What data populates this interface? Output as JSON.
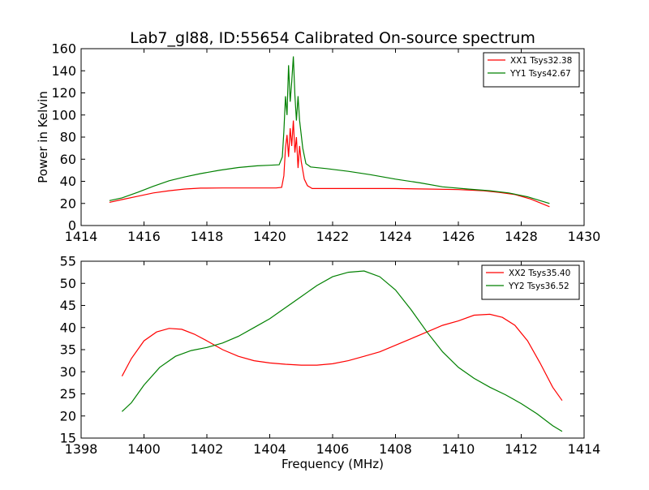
{
  "figure": {
    "title": "Lab7_gl88, ID:55654 Calibrated On-source spectrum"
  },
  "colors": {
    "red": "#ff0000",
    "green": "#008000",
    "axis": "#000000",
    "background": "#ffffff"
  },
  "chart_data": [
    {
      "type": "line",
      "title": "Lab7_gl88, ID:55654 Calibrated On-source spectrum",
      "xlabel": "",
      "ylabel": "Power in Kelvin",
      "xlim": [
        1414,
        1430
      ],
      "ylim": [
        0,
        160
      ],
      "xticks": [
        1414,
        1416,
        1418,
        1420,
        1422,
        1424,
        1426,
        1428,
        1430
      ],
      "yticks": [
        0,
        20,
        40,
        60,
        80,
        100,
        120,
        140,
        160
      ],
      "grid": false,
      "legend_position": "top-right",
      "series": [
        {
          "name": "XX1 Tsys32.38",
          "color": "#ff0000",
          "points": [
            [
              1414.9,
              21
            ],
            [
              1415.3,
              23.5
            ],
            [
              1415.8,
              26.5
            ],
            [
              1416.3,
              29.5
            ],
            [
              1416.8,
              31.5
            ],
            [
              1417.3,
              33
            ],
            [
              1417.8,
              33.8
            ],
            [
              1418.5,
              34
            ],
            [
              1419.5,
              34
            ],
            [
              1420.2,
              34
            ],
            [
              1420.38,
              34.5
            ],
            [
              1420.45,
              45
            ],
            [
              1420.5,
              70
            ],
            [
              1420.55,
              82
            ],
            [
              1420.6,
              62
            ],
            [
              1420.65,
              88
            ],
            [
              1420.7,
              72
            ],
            [
              1420.75,
              95
            ],
            [
              1420.8,
              66
            ],
            [
              1420.85,
              80
            ],
            [
              1420.9,
              52
            ],
            [
              1420.95,
              72
            ],
            [
              1421.0,
              58
            ],
            [
              1421.1,
              42
            ],
            [
              1421.2,
              36
            ],
            [
              1421.35,
              33.5
            ],
            [
              1422,
              33.5
            ],
            [
              1423,
              33.5
            ],
            [
              1424,
              33.5
            ],
            [
              1425,
              33
            ],
            [
              1426,
              32.5
            ],
            [
              1426.8,
              31.5
            ],
            [
              1427.3,
              30
            ],
            [
              1427.8,
              28
            ],
            [
              1428.3,
              24
            ],
            [
              1428.9,
              17
            ]
          ]
        },
        {
          "name": "YY1 Tsys42.67",
          "color": "#008000",
          "points": [
            [
              1414.9,
              22.5
            ],
            [
              1415.3,
              25
            ],
            [
              1415.8,
              30
            ],
            [
              1416.3,
              35.5
            ],
            [
              1416.8,
              40.5
            ],
            [
              1417.3,
              44
            ],
            [
              1417.8,
              47
            ],
            [
              1418.4,
              50
            ],
            [
              1419,
              52.5
            ],
            [
              1419.6,
              54
            ],
            [
              1420.0,
              54.5
            ],
            [
              1420.3,
              55
            ],
            [
              1420.4,
              62
            ],
            [
              1420.45,
              85
            ],
            [
              1420.5,
              117
            ],
            [
              1420.55,
              100
            ],
            [
              1420.6,
              145
            ],
            [
              1420.65,
              112
            ],
            [
              1420.7,
              130
            ],
            [
              1420.75,
              153
            ],
            [
              1420.8,
              118
            ],
            [
              1420.85,
              95
            ],
            [
              1420.9,
              117
            ],
            [
              1420.95,
              95
            ],
            [
              1421.05,
              70
            ],
            [
              1421.15,
              56
            ],
            [
              1421.3,
              53
            ],
            [
              1421.8,
              51.5
            ],
            [
              1422.5,
              49
            ],
            [
              1423.2,
              46
            ],
            [
              1424,
              42
            ],
            [
              1424.8,
              38.5
            ],
            [
              1425.5,
              35
            ],
            [
              1426.3,
              33
            ],
            [
              1427,
              31.5
            ],
            [
              1427.6,
              29.5
            ],
            [
              1428.2,
              26
            ],
            [
              1428.9,
              20
            ]
          ]
        }
      ]
    },
    {
      "type": "line",
      "title": "",
      "xlabel": "Frequency (MHz)",
      "ylabel": "",
      "xlim": [
        1398,
        1414
      ],
      "ylim": [
        15,
        55
      ],
      "xticks": [
        1398,
        1400,
        1402,
        1404,
        1406,
        1408,
        1410,
        1412,
        1414
      ],
      "yticks": [
        15,
        20,
        25,
        30,
        35,
        40,
        45,
        50,
        55
      ],
      "grid": false,
      "legend_position": "top-right",
      "series": [
        {
          "name": "XX2 Tsys35.40",
          "color": "#ff0000",
          "points": [
            [
              1399.3,
              29
            ],
            [
              1399.6,
              33
            ],
            [
              1400.0,
              37
            ],
            [
              1400.4,
              39
            ],
            [
              1400.8,
              39.8
            ],
            [
              1401.2,
              39.6
            ],
            [
              1401.6,
              38.5
            ],
            [
              1402.0,
              37
            ],
            [
              1402.5,
              35
            ],
            [
              1403.0,
              33.5
            ],
            [
              1403.5,
              32.5
            ],
            [
              1404.0,
              32
            ],
            [
              1404.5,
              31.7
            ],
            [
              1405.0,
              31.5
            ],
            [
              1405.5,
              31.5
            ],
            [
              1406.0,
              31.8
            ],
            [
              1406.5,
              32.5
            ],
            [
              1407.0,
              33.5
            ],
            [
              1407.5,
              34.5
            ],
            [
              1408.0,
              36
            ],
            [
              1408.5,
              37.5
            ],
            [
              1409.0,
              39
            ],
            [
              1409.5,
              40.5
            ],
            [
              1410.0,
              41.5
            ],
            [
              1410.5,
              42.8
            ],
            [
              1411.0,
              43
            ],
            [
              1411.4,
              42.3
            ],
            [
              1411.8,
              40.5
            ],
            [
              1412.2,
              37
            ],
            [
              1412.6,
              32
            ],
            [
              1413.0,
              26.5
            ],
            [
              1413.3,
              23.5
            ]
          ]
        },
        {
          "name": "YY2 Tsys36.52",
          "color": "#008000",
          "points": [
            [
              1399.3,
              21
            ],
            [
              1399.6,
              23
            ],
            [
              1400.0,
              27
            ],
            [
              1400.5,
              31
            ],
            [
              1401.0,
              33.5
            ],
            [
              1401.5,
              34.8
            ],
            [
              1402.0,
              35.5
            ],
            [
              1402.5,
              36.5
            ],
            [
              1403.0,
              38
            ],
            [
              1403.5,
              40
            ],
            [
              1404.0,
              42
            ],
            [
              1404.5,
              44.5
            ],
            [
              1405.0,
              47
            ],
            [
              1405.5,
              49.5
            ],
            [
              1406.0,
              51.5
            ],
            [
              1406.5,
              52.5
            ],
            [
              1407.0,
              52.8
            ],
            [
              1407.5,
              51.5
            ],
            [
              1408.0,
              48.5
            ],
            [
              1408.5,
              44
            ],
            [
              1409.0,
              39
            ],
            [
              1409.5,
              34.5
            ],
            [
              1410.0,
              31
            ],
            [
              1410.5,
              28.5
            ],
            [
              1411.0,
              26.5
            ],
            [
              1411.5,
              24.8
            ],
            [
              1412.0,
              22.8
            ],
            [
              1412.5,
              20.5
            ],
            [
              1413.0,
              17.8
            ],
            [
              1413.3,
              16.5
            ]
          ]
        }
      ]
    }
  ]
}
